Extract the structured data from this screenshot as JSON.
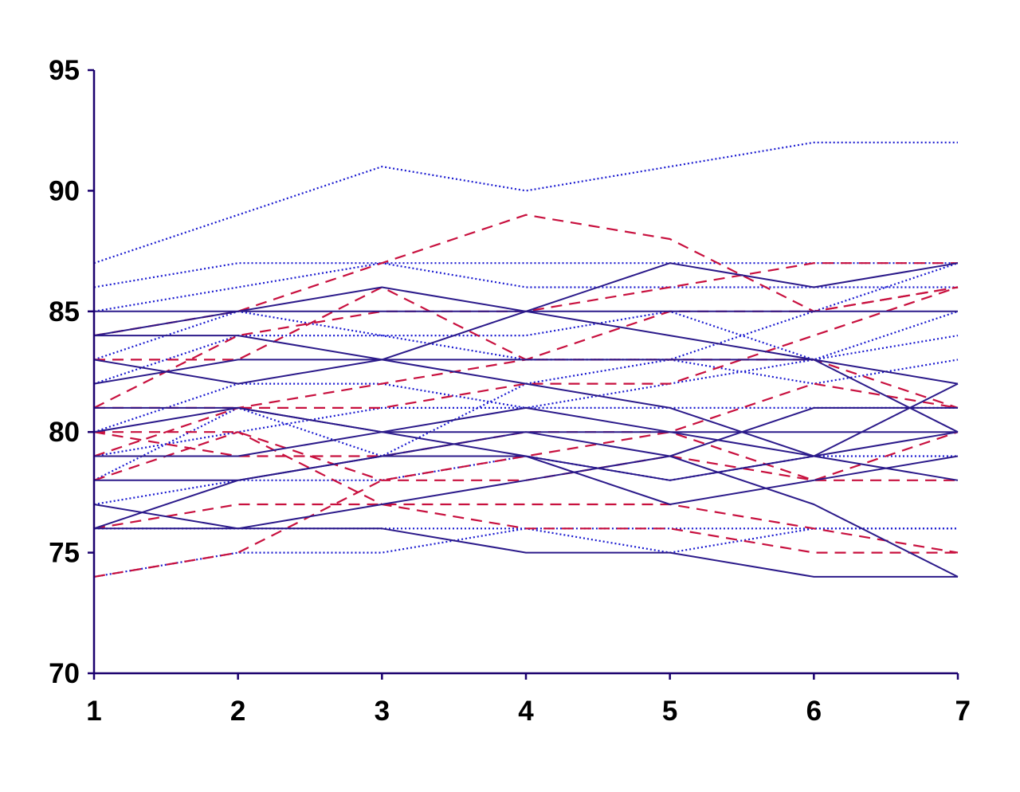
{
  "chart_data": {
    "type": "line",
    "title": "",
    "xlabel": "",
    "ylabel": "",
    "x": [
      1,
      2,
      3,
      4,
      5,
      6,
      7
    ],
    "ylim": [
      70,
      95
    ],
    "yticks": [
      70,
      75,
      80,
      85,
      90,
      95
    ],
    "xticks": [
      1,
      2,
      3,
      4,
      5,
      6,
      7
    ],
    "legend": "none",
    "grid": false,
    "colors": {
      "axis": "#1a006e",
      "solid": "#2b1a8a",
      "dashed": "#c8103e",
      "dotted": "#1a1ad0"
    },
    "series": [
      {
        "style": "dotted",
        "values": [
          87,
          89,
          91,
          90,
          91,
          92,
          92
        ]
      },
      {
        "style": "dotted",
        "values": [
          86,
          87,
          87,
          87,
          87,
          87,
          87
        ]
      },
      {
        "style": "dotted",
        "values": [
          85,
          86,
          87,
          86,
          86,
          86,
          86
        ]
      },
      {
        "style": "dotted",
        "values": [
          83,
          85,
          84,
          84,
          85,
          83,
          84
        ]
      },
      {
        "style": "dotted",
        "values": [
          82,
          84,
          84,
          83,
          83,
          82,
          83
        ]
      },
      {
        "style": "dotted",
        "values": [
          80,
          82,
          82,
          81,
          81,
          81,
          81
        ]
      },
      {
        "style": "dotted",
        "values": [
          79,
          80,
          81,
          81,
          82,
          83,
          85
        ]
      },
      {
        "style": "dotted",
        "values": [
          78,
          81,
          79,
          82,
          83,
          85,
          87
        ]
      },
      {
        "style": "dotted",
        "values": [
          77,
          78,
          78,
          79,
          78,
          79,
          79
        ]
      },
      {
        "style": "dotted",
        "values": [
          76,
          76,
          76,
          76,
          75,
          76,
          76
        ]
      },
      {
        "style": "dotted",
        "values": [
          74,
          75,
          75,
          76,
          76,
          76,
          76
        ]
      },
      {
        "style": "dashed",
        "values": [
          74,
          75,
          78,
          79,
          80,
          82,
          81
        ]
      },
      {
        "style": "dashed",
        "values": [
          84,
          85,
          87,
          89,
          88,
          85,
          86
        ]
      },
      {
        "style": "dashed",
        "values": [
          81,
          84,
          85,
          85,
          86,
          87,
          87
        ]
      },
      {
        "style": "dashed",
        "values": [
          83,
          83,
          86,
          83,
          83,
          83,
          81
        ]
      },
      {
        "style": "dashed",
        "values": [
          81,
          81,
          81,
          82,
          82,
          84,
          86
        ]
      },
      {
        "style": "dashed",
        "values": [
          80,
          80,
          78,
          78,
          79,
          78,
          78
        ]
      },
      {
        "style": "dashed",
        "values": [
          78,
          80,
          77,
          76,
          76,
          75,
          75
        ]
      },
      {
        "style": "dashed",
        "values": [
          76,
          77,
          77,
          77,
          77,
          76,
          75
        ]
      },
      {
        "style": "dashed",
        "values": [
          79,
          81,
          82,
          83,
          85,
          85,
          86
        ]
      },
      {
        "style": "dashed",
        "values": [
          80,
          79,
          79,
          80,
          80,
          78,
          80
        ]
      },
      {
        "style": "solid",
        "values": [
          85,
          85,
          85,
          85,
          85,
          85,
          85
        ]
      },
      {
        "style": "solid",
        "values": [
          84,
          85,
          86,
          85,
          84,
          83,
          80
        ]
      },
      {
        "style": "solid",
        "values": [
          84,
          84,
          83,
          82,
          81,
          79,
          80
        ]
      },
      {
        "style": "solid",
        "values": [
          83,
          82,
          83,
          85,
          87,
          86,
          87
        ]
      },
      {
        "style": "solid",
        "values": [
          82,
          83,
          83,
          83,
          83,
          83,
          82
        ]
      },
      {
        "style": "solid",
        "values": [
          81,
          81,
          80,
          79,
          78,
          79,
          82
        ]
      },
      {
        "style": "solid",
        "values": [
          80,
          81,
          80,
          80,
          80,
          80,
          80
        ]
      },
      {
        "style": "solid",
        "values": [
          79,
          79,
          80,
          81,
          80,
          79,
          78
        ]
      },
      {
        "style": "solid",
        "values": [
          78,
          78,
          79,
          79,
          77,
          78,
          79
        ]
      },
      {
        "style": "solid",
        "values": [
          77,
          76,
          77,
          78,
          79,
          81,
          81
        ]
      },
      {
        "style": "solid",
        "values": [
          76,
          76,
          76,
          75,
          75,
          74,
          74
        ]
      },
      {
        "style": "solid",
        "values": [
          76,
          78,
          79,
          80,
          79,
          77,
          74
        ]
      }
    ]
  }
}
